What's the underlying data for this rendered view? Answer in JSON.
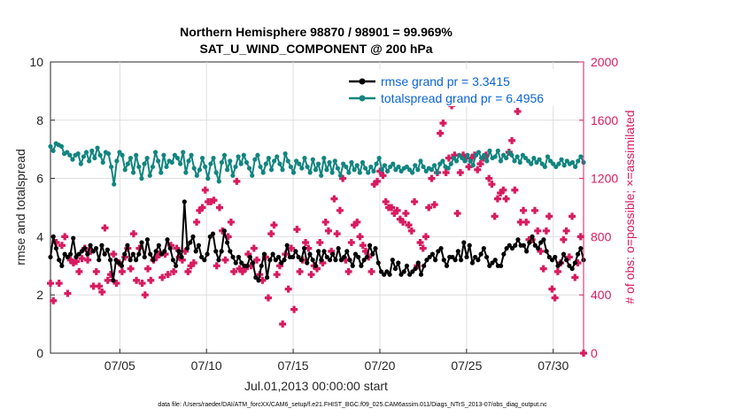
{
  "chart_data": {
    "type": "line",
    "title_line1": "Northern Hemisphere 98870 / 98901 = 99.969%",
    "title_line2": "SAT_U_WIND_COMPONENT @ 200 hPa",
    "ylabel_left": "rmse and totalspread",
    "ylabel_right": "# of obs: o=possible; ×=assimilated",
    "xlabel": "Jul.01,2013 00:00:00 start",
    "footnote": "data file: /Users/raeder/DAI/ATM_forcXX/CAM6_setup/f.e21.FHIST_BGC.f09_025.CAM6assim.011/Diags_NTrS_2013-07/obs_diag_output.nc",
    "xlim": [
      1,
      31.75
    ],
    "ylim_left": [
      0,
      10
    ],
    "ylim_right": [
      0,
      2000
    ],
    "yticks_left": [
      0,
      2,
      4,
      6,
      8,
      10
    ],
    "yticks_right": [
      0,
      400,
      800,
      1200,
      1600,
      2000
    ],
    "xticks": [
      {
        "value": 5,
        "label": "07/05"
      },
      {
        "value": 10,
        "label": "07/10"
      },
      {
        "value": 15,
        "label": "07/15"
      },
      {
        "value": 20,
        "label": "07/20"
      },
      {
        "value": 25,
        "label": "07/25"
      },
      {
        "value": 30,
        "label": "07/30"
      }
    ],
    "series": [
      {
        "name": "rmse grand pr = 3.3415",
        "axis": "left",
        "color": "#000000",
        "values": [
          3.3,
          4.0,
          3.6,
          3.2,
          3.0,
          3.4,
          3.3,
          3.4,
          3.95,
          3.3,
          3.4,
          3.5,
          3.6,
          3.4,
          3.7,
          3.5,
          3.6,
          3.2,
          3.7,
          3.4,
          3.55,
          3.2,
          2.5,
          3.2,
          3.1,
          3.0,
          3.4,
          3.7,
          3.2,
          3.4,
          3.2,
          3.4,
          3.8,
          3.3,
          3.9,
          3.4,
          3.2,
          3.5,
          3.7,
          3.4,
          3.5,
          3.9,
          3.6,
          3.2,
          3.0,
          3.5,
          3.3,
          5.2,
          3.6,
          3.8,
          4.0,
          3.5,
          3.7,
          3.3,
          3.2,
          3.4,
          4.0,
          4.1,
          3.5,
          3.2,
          3.5,
          4.2,
          3.8,
          3.5,
          3.3,
          3.1,
          3.3,
          3.1,
          3.0,
          3.0,
          3.3,
          3.1,
          2.6,
          2.5,
          3.0,
          3.4,
          2.6,
          3.2,
          3.4,
          3.2,
          3.3,
          3.1,
          3.2,
          3.7,
          3.3,
          3.3,
          3.5,
          3.3,
          3.2,
          3.6,
          3.1,
          3.4,
          3.2,
          3.0,
          3.5,
          3.2,
          3.5,
          3.3,
          3.2,
          3.4,
          3.2,
          3.6,
          3.2,
          3.3,
          3.5,
          3.2,
          3.0,
          3.4,
          3.3,
          3.0,
          3.2,
          3.3,
          3.7,
          3.4,
          3.6,
          3.1,
          2.8,
          2.7,
          2.8,
          2.7,
          3.2,
          2.9,
          3.1,
          2.7,
          2.8,
          3.0,
          2.7,
          2.8,
          2.9,
          3.1,
          2.7,
          3.0,
          3.2,
          3.3,
          3.4,
          3.2,
          3.5,
          3.6,
          3.2,
          3.0,
          3.3,
          3.3,
          3.2,
          3.5,
          3.2,
          3.8,
          3.3,
          3.7,
          3.1,
          3.3,
          3.2,
          3.4,
          3.6,
          3.3,
          3.0,
          3.1,
          3.2,
          3.0,
          3.0,
          3.4,
          3.6,
          3.7,
          3.6,
          3.7,
          3.9,
          3.7,
          3.7,
          3.5,
          3.8,
          4.0,
          3.7,
          3.6,
          3.8,
          3.9,
          3.5,
          3.3,
          3.2,
          3.3,
          3.0,
          3.1,
          3.4,
          3.2,
          3.0,
          2.9,
          3.1,
          3.4,
          3.6,
          3.2
        ]
      },
      {
        "name": "totalspread grand pr = 6.4956",
        "axis": "left",
        "color": "#12857f",
        "values": [
          7.1,
          6.95,
          7.2,
          7.15,
          7.1,
          6.85,
          6.9,
          6.8,
          6.65,
          6.8,
          6.85,
          6.5,
          6.75,
          6.9,
          6.6,
          6.95,
          6.7,
          7.05,
          6.8,
          6.55,
          6.9,
          6.85,
          6.4,
          5.8,
          6.6,
          6.9,
          6.8,
          6.3,
          6.5,
          6.7,
          6.2,
          6.8,
          6.4,
          6.0,
          6.5,
          6.7,
          6.1,
          6.4,
          6.9,
          6.6,
          6.2,
          6.8,
          6.4,
          6.6,
          6.55,
          6.8,
          6.7,
          6.5,
          6.9,
          6.2,
          6.6,
          6.8,
          6.35,
          6.1,
          6.3,
          6.7,
          6.4,
          6.0,
          6.5,
          6.7,
          6.2,
          5.9,
          6.55,
          6.8,
          6.3,
          6.6,
          6.1,
          6.4,
          6.75,
          6.5,
          6.8,
          6.55,
          6.35,
          6.1,
          6.65,
          6.8,
          6.4,
          6.2,
          6.5,
          6.7,
          6.3,
          6.6,
          6.75,
          6.5,
          6.3,
          6.85,
          6.6,
          6.4,
          6.2,
          6.6,
          6.5,
          6.35,
          6.7,
          6.4,
          6.2,
          6.65,
          6.3,
          6.5,
          6.1,
          6.7,
          6.3,
          6.55,
          6.2,
          6.6,
          6.35,
          6.1,
          6.5,
          6.4,
          6.2,
          6.55,
          6.3,
          6.45,
          6.2,
          6.55,
          6.35,
          6.2,
          6.4,
          6.25,
          6.5,
          6.7,
          6.3,
          6.45,
          6.25,
          6.4,
          6.5,
          6.3,
          6.4,
          6.25,
          6.35,
          6.4,
          6.3,
          6.2,
          6.45,
          6.3,
          6.6,
          6.4,
          6.25,
          6.35,
          6.3,
          6.45,
          6.2,
          6.5,
          6.6,
          6.4,
          6.35,
          6.5,
          6.7,
          6.6,
          6.8,
          6.7,
          6.6,
          6.8,
          6.6,
          6.45,
          6.8,
          6.9,
          6.7,
          6.8,
          6.6,
          6.95,
          6.7,
          6.75,
          6.95,
          6.6,
          6.8,
          6.7,
          6.9,
          6.8,
          6.6,
          6.75,
          6.55,
          6.8,
          6.7,
          6.6,
          6.5,
          6.7,
          6.55,
          6.65,
          6.5,
          6.4,
          6.75,
          6.6,
          6.5,
          6.4,
          6.5,
          6.65,
          6.45,
          6.6,
          6.5,
          6.55,
          6.4,
          6.6,
          6.75,
          6.55
        ]
      }
    ],
    "obs_assimilated": {
      "axis": "right",
      "color": "#d81b60",
      "values": [
        480,
        360,
        760,
        480,
        740,
        800,
        410,
        640,
        620,
        630,
        560,
        650,
        720,
        640,
        700,
        460,
        560,
        460,
        420,
        860,
        500,
        540,
        680,
        480,
        620,
        560,
        660,
        720,
        580,
        820,
        500,
        720,
        480,
        400,
        580,
        500,
        640,
        660,
        680,
        520,
        680,
        540,
        740,
        560,
        720,
        660,
        640,
        700,
        560,
        600,
        620,
        900,
        980,
        1000,
        1120,
        1040,
        1040,
        1050,
        600,
        1000,
        840,
        640,
        800,
        900,
        560,
        1180,
        580,
        560,
        580,
        680,
        600,
        720,
        640,
        540,
        500,
        660,
        380,
        820,
        880,
        540,
        600,
        200,
        680,
        440,
        720,
        300,
        850,
        560,
        640,
        760,
        720,
        540,
        600,
        580,
        760,
        620,
        900,
        840,
        700,
        1060,
        820,
        980,
        1200,
        640,
        560,
        760,
        880,
        900,
        800,
        740,
        700,
        660,
        560,
        1160,
        1180,
        1250,
        1220,
        1040,
        1000,
        1000,
        960,
        980,
        920,
        900,
        960,
        880,
        840,
        1040,
        600,
        760,
        720,
        800,
        1000,
        1200,
        1020,
        1240,
        1510,
        1580,
        1240,
        1340,
        1700,
        1360,
        960,
        1240,
        1360,
        1340,
        1280,
        1340,
        1360,
        1260,
        1300,
        1340,
        1360,
        1200,
        1160,
        940,
        1060,
        1100,
        1120,
        1060,
        1380,
        1460,
        1120,
        1660,
        900,
        980,
        900,
        780,
        780,
        980,
        840,
        700,
        580,
        840,
        940,
        440,
        380,
        560,
        620,
        780,
        840,
        660,
        940,
        520,
        620,
        800,
        0
      ]
    }
  }
}
